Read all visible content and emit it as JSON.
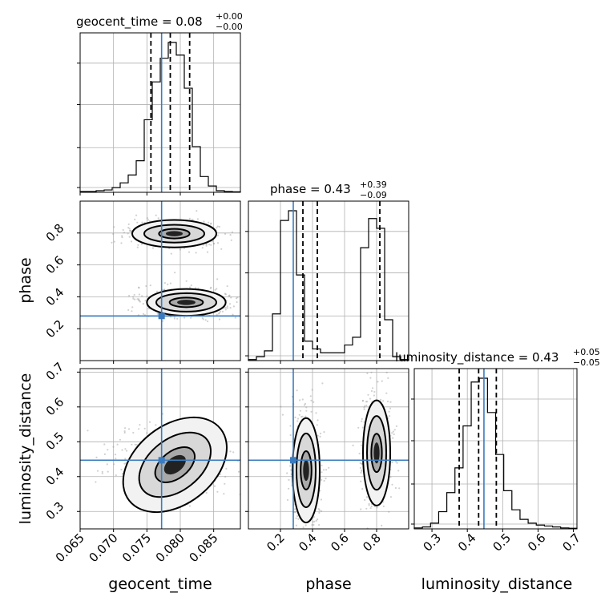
{
  "colors": {
    "truth": "#3b7bbf",
    "grid": "#b0b0b0",
    "line": "#000000",
    "scatter": "#9a9a9a"
  },
  "titles": {
    "geocent_time": {
      "main": "geocent_time = 0.08",
      "upper": "+0.00",
      "lower": "−0.00"
    },
    "phase": {
      "main": "phase = 0.43",
      "upper": "+0.39",
      "lower": "−0.09"
    },
    "luminosity_distance": {
      "main": "luminosity_distance = 0.43",
      "upper": "+0.05",
      "lower": "−0.05"
    }
  },
  "axis_labels": {
    "x0": "geocent_time",
    "x1": "phase",
    "x2": "luminosity_distance",
    "y1": "phase",
    "y2": "luminosity_distance"
  },
  "chart_data": {
    "type": "corner",
    "parameters": [
      "geocent_time",
      "phase",
      "luminosity_distance"
    ],
    "ranges": {
      "geocent_time": [
        0.065,
        0.089
      ],
      "phase": [
        0.0,
        1.0
      ],
      "luminosity_distance": [
        0.25,
        0.71
      ]
    },
    "ticks": {
      "geocent_time": [
        "0.065",
        "0.070",
        "0.075",
        "0.080",
        "0.085"
      ],
      "phase": [
        "0.2",
        "0.4",
        "0.6",
        "0.8"
      ],
      "luminosity_distance": [
        "0.3",
        "0.4",
        "0.5",
        "0.6",
        "0.7"
      ]
    },
    "truths": {
      "geocent_time": 0.0772,
      "phase": 0.28,
      "luminosity_distance": 0.447
    },
    "quantiles": {
      "geocent_time": [
        0.0756,
        0.0785,
        0.0814
      ],
      "phase": [
        0.34,
        0.43,
        0.82
      ],
      "luminosity_distance": [
        0.377,
        0.432,
        0.482
      ]
    },
    "histograms": {
      "geocent_time": {
        "edges": [
          0.065,
          0.089
        ],
        "counts": [
          0.5,
          0.5,
          1,
          1.5,
          3,
          6,
          11,
          20,
          46,
          70,
          85,
          95,
          87,
          66,
          29,
          10,
          4,
          1,
          0.5,
          0.3
        ]
      },
      "phase": {
        "edges": [
          0.0,
          1.0
        ],
        "counts": [
          0.5,
          2,
          5,
          24,
          72,
          77,
          44,
          10,
          6,
          4,
          4,
          4,
          8,
          12,
          58,
          73,
          68,
          21,
          2,
          0.5
        ]
      },
      "luminosity_distance": {
        "edges": [
          0.25,
          0.71
        ],
        "counts": [
          0.5,
          1,
          3,
          9,
          19,
          32,
          54,
          77,
          79,
          61,
          39,
          20,
          10,
          5,
          3,
          2,
          1.5,
          1,
          0.5,
          0.3
        ]
      }
    },
    "contours_2d": {
      "phase_vs_geocent_time": [
        {
          "cx": 0.0791,
          "cy": 0.796,
          "levels": [
            [
              0.0063,
              0.086
            ],
            [
              0.0045,
              0.056
            ],
            [
              0.0023,
              0.03
            ]
          ]
        },
        {
          "cx": 0.0809,
          "cy": 0.365,
          "levels": [
            [
              0.0059,
              0.084
            ],
            [
              0.0045,
              0.058
            ],
            [
              0.0025,
              0.03
            ]
          ]
        }
      ],
      "luminosity_distance_vs_geocent_time": [
        {
          "cx": 0.0792,
          "cy": 0.434,
          "rot": 38,
          "levels": [
            [
              0.0087,
              0.113
            ],
            [
              0.0061,
              0.074
            ],
            [
              0.0034,
              0.039
            ]
          ]
        }
      ],
      "luminosity_distance_vs_phase": [
        {
          "cx": 0.36,
          "cy": 0.418,
          "levels": [
            [
              0.085,
              0.15
            ],
            [
              0.06,
              0.106
            ],
            [
              0.034,
              0.055
            ]
          ]
        },
        {
          "cx": 0.8,
          "cy": 0.468,
          "levels": [
            [
              0.085,
              0.151
            ],
            [
              0.06,
              0.106
            ],
            [
              0.033,
              0.055
            ]
          ]
        }
      ]
    },
    "quantiles_shown": "16%, 50%, 84%"
  }
}
